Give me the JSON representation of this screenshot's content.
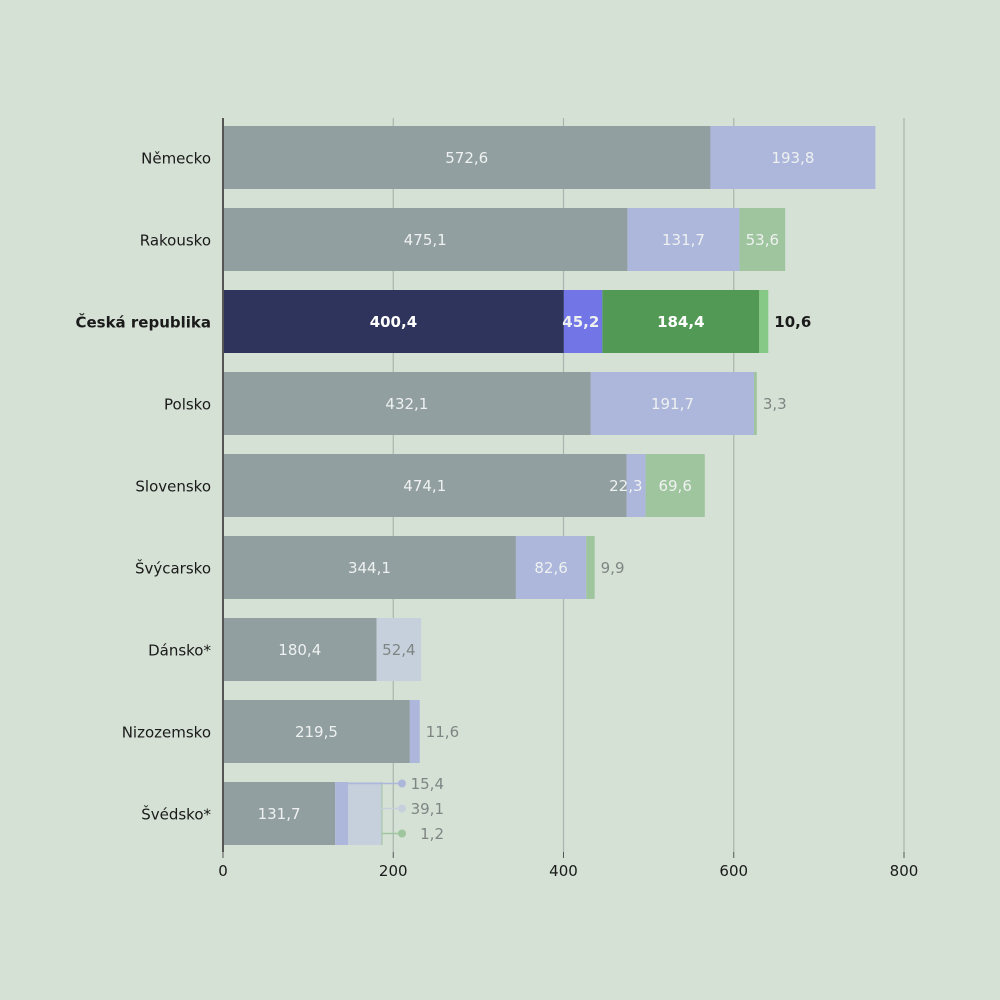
{
  "chart_data": {
    "type": "bar",
    "orientation": "horizontal",
    "stacked": true,
    "categories": [
      "Německo",
      "Rakousko",
      "Česká republika",
      "Polsko",
      "Slovensko",
      "Švýcarsko",
      "Dánsko*",
      "Nizozemsko",
      "Švédsko*"
    ],
    "highlight": "Česká republika",
    "series": [
      {
        "name": "segment-1",
        "values": [
          572.6,
          475.1,
          400.4,
          432.1,
          474.1,
          344.1,
          180.4,
          219.5,
          131.7
        ],
        "labels": [
          "572,6",
          "475,1",
          "400,4",
          "432,1",
          "474,1",
          "344,1",
          "180,4",
          "219,5",
          "131,7"
        ]
      },
      {
        "name": "segment-2",
        "values": [
          193.8,
          131.7,
          45.2,
          191.7,
          22.3,
          82.6,
          0,
          11.6,
          15.4
        ],
        "labels": [
          "193,8",
          "131,7",
          "45,2",
          "191,7",
          "22,3",
          "82,6",
          "",
          "11,6",
          "15,4"
        ]
      },
      {
        "name": "segment-3",
        "values": [
          0,
          0,
          184.4,
          0,
          0,
          0,
          52.4,
          0,
          39.1
        ],
        "labels": [
          "",
          "",
          "184,4",
          "",
          "",
          "",
          "52,4",
          "",
          "39,1"
        ]
      },
      {
        "name": "segment-4",
        "values": [
          0,
          53.6,
          10.6,
          3.3,
          69.6,
          9.9,
          0,
          0,
          1.2
        ],
        "labels": [
          "",
          "53,6",
          "10,6",
          "3,3",
          "69,6",
          "9,9",
          "",
          "",
          "1,2"
        ]
      }
    ],
    "xlim": [
      0,
      800
    ],
    "xticks": [
      0,
      200,
      400,
      600,
      800
    ],
    "xtick_labels": [
      "0",
      "200",
      "400",
      "600",
      "800"
    ],
    "grid": true,
    "colors": {
      "background": "#d5e1d5",
      "base": "#929fa1",
      "blue": "#adb7dc",
      "light": "#c5d0dc",
      "green": "#9fc59f",
      "hl_base": "#2f345c",
      "hl_blue": "#7275e6",
      "hl_green": "#519955",
      "hl_small": "#86c986",
      "grid": "#a9b5ad",
      "axis": "#555555",
      "text": "#1a1a1a",
      "label_light": "#eef1f0",
      "label_dark": "#7f8584"
    }
  }
}
